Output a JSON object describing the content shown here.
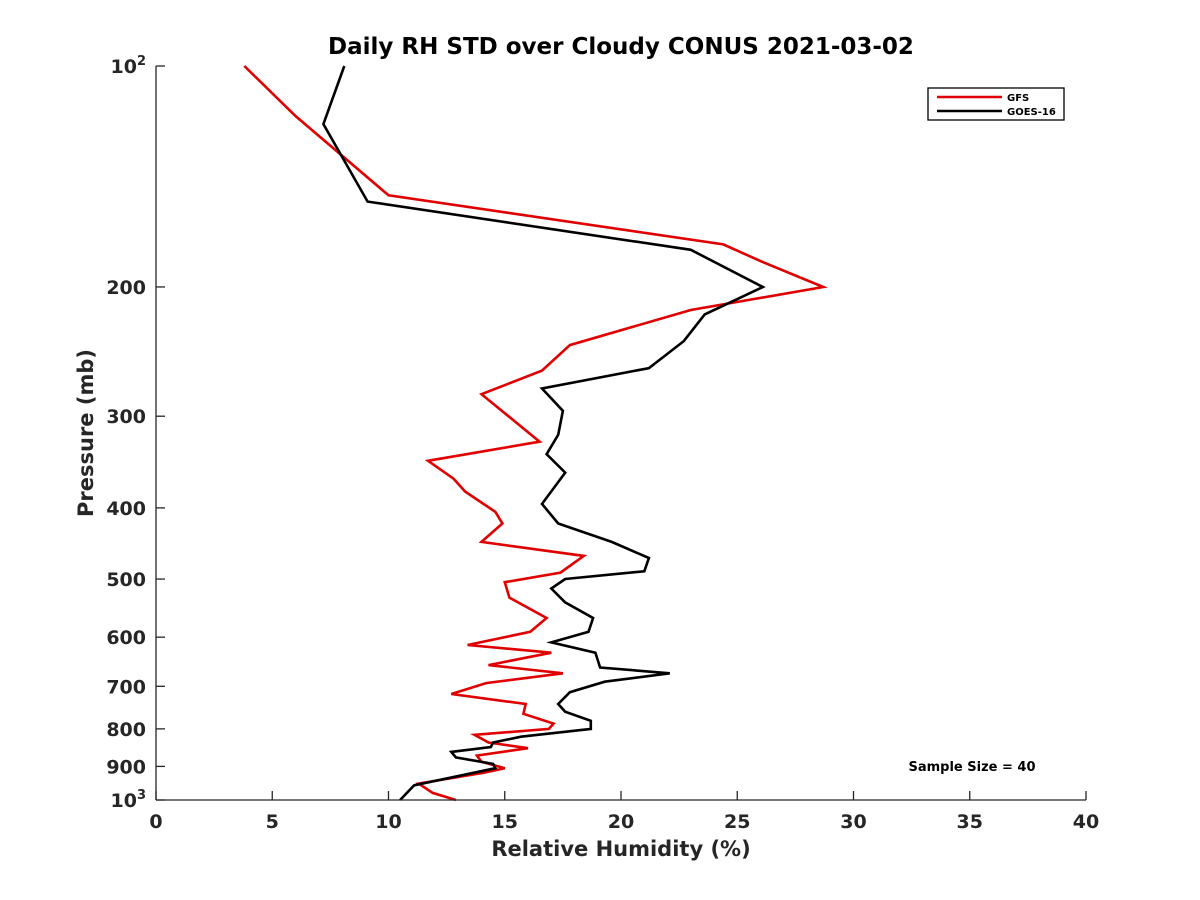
{
  "chart_data": {
    "type": "line",
    "title": "Daily RH STD over Cloudy CONUS 2021-03-02",
    "xlabel": "Relative Humidity (%)",
    "ylabel": "Pressure (mb)",
    "xlim": [
      0,
      40
    ],
    "ylim": [
      100,
      1000
    ],
    "y_scale": "log",
    "y_reversed": true,
    "grid": false,
    "legend_position": "top-right",
    "x_ticks": [
      0,
      5,
      10,
      15,
      20,
      25,
      30,
      35,
      40
    ],
    "x_tick_labels": [
      "0",
      "5",
      "10",
      "15",
      "20",
      "25",
      "30",
      "35",
      "40"
    ],
    "y_ticks": [
      100,
      200,
      300,
      400,
      500,
      600,
      700,
      800,
      900,
      1000
    ],
    "y_tick_labels": [
      {
        "base": "10",
        "exp": "2"
      },
      {
        "base": "200",
        "exp": ""
      },
      {
        "base": "300",
        "exp": ""
      },
      {
        "base": "400",
        "exp": ""
      },
      {
        "base": "500",
        "exp": ""
      },
      {
        "base": "600",
        "exp": ""
      },
      {
        "base": "700",
        "exp": ""
      },
      {
        "base": "800",
        "exp": ""
      },
      {
        "base": "900",
        "exp": ""
      },
      {
        "base": "10",
        "exp": "3"
      }
    ],
    "annotation": "Sample Size = 40",
    "series": [
      {
        "name": "GFS",
        "color": "#e00000",
        "points": [
          [
            3.8,
            100
          ],
          [
            6.0,
            117
          ],
          [
            10.0,
            150
          ],
          [
            24.4,
            175
          ],
          [
            26.1,
            185
          ],
          [
            28.7,
            200
          ],
          [
            23.0,
            215
          ],
          [
            17.8,
            240
          ],
          [
            16.6,
            260
          ],
          [
            14.0,
            280
          ],
          [
            16.5,
            325
          ],
          [
            11.7,
            345
          ],
          [
            12.8,
            365
          ],
          [
            13.3,
            380
          ],
          [
            14.6,
            405
          ],
          [
            14.9,
            420
          ],
          [
            14.0,
            445
          ],
          [
            18.4,
            465
          ],
          [
            17.4,
            490
          ],
          [
            15.0,
            505
          ],
          [
            15.2,
            530
          ],
          [
            16.8,
            565
          ],
          [
            16.1,
            590
          ],
          [
            13.4,
            615
          ],
          [
            17.0,
            630
          ],
          [
            14.3,
            655
          ],
          [
            17.5,
            672
          ],
          [
            14.2,
            693
          ],
          [
            12.7,
            717
          ],
          [
            15.9,
            740
          ],
          [
            15.8,
            763
          ],
          [
            17.1,
            787
          ],
          [
            16.9,
            800
          ],
          [
            13.7,
            815
          ],
          [
            14.3,
            835
          ],
          [
            16.0,
            850
          ],
          [
            13.8,
            870
          ],
          [
            14.0,
            887
          ],
          [
            15.0,
            905
          ],
          [
            14.1,
            918
          ],
          [
            11.3,
            950
          ],
          [
            11.9,
            978
          ],
          [
            12.9,
            1000
          ]
        ]
      },
      {
        "name": "GOES-16",
        "color": "#000000",
        "points": [
          [
            8.1,
            100
          ],
          [
            7.2,
            120
          ],
          [
            9.1,
            153
          ],
          [
            23.0,
            178
          ],
          [
            26.1,
            200
          ],
          [
            23.6,
            218
          ],
          [
            22.7,
            237
          ],
          [
            21.2,
            258
          ],
          [
            16.6,
            275
          ],
          [
            17.5,
            295
          ],
          [
            17.3,
            318
          ],
          [
            16.8,
            338
          ],
          [
            17.6,
            358
          ],
          [
            16.6,
            395
          ],
          [
            17.3,
            420
          ],
          [
            19.6,
            445
          ],
          [
            21.2,
            468
          ],
          [
            21.0,
            488
          ],
          [
            17.6,
            500
          ],
          [
            17.0,
            515
          ],
          [
            17.6,
            538
          ],
          [
            18.8,
            565
          ],
          [
            18.6,
            590
          ],
          [
            17.0,
            610
          ],
          [
            18.9,
            630
          ],
          [
            19.1,
            660
          ],
          [
            22.1,
            672
          ],
          [
            19.3,
            690
          ],
          [
            17.8,
            713
          ],
          [
            17.3,
            740
          ],
          [
            17.6,
            758
          ],
          [
            18.7,
            780
          ],
          [
            18.7,
            800
          ],
          [
            15.7,
            820
          ],
          [
            14.5,
            835
          ],
          [
            14.4,
            847
          ],
          [
            12.7,
            860
          ],
          [
            12.9,
            875
          ],
          [
            14.5,
            893
          ],
          [
            14.6,
            905
          ],
          [
            11.1,
            955
          ],
          [
            10.5,
            1000
          ]
        ]
      }
    ]
  }
}
